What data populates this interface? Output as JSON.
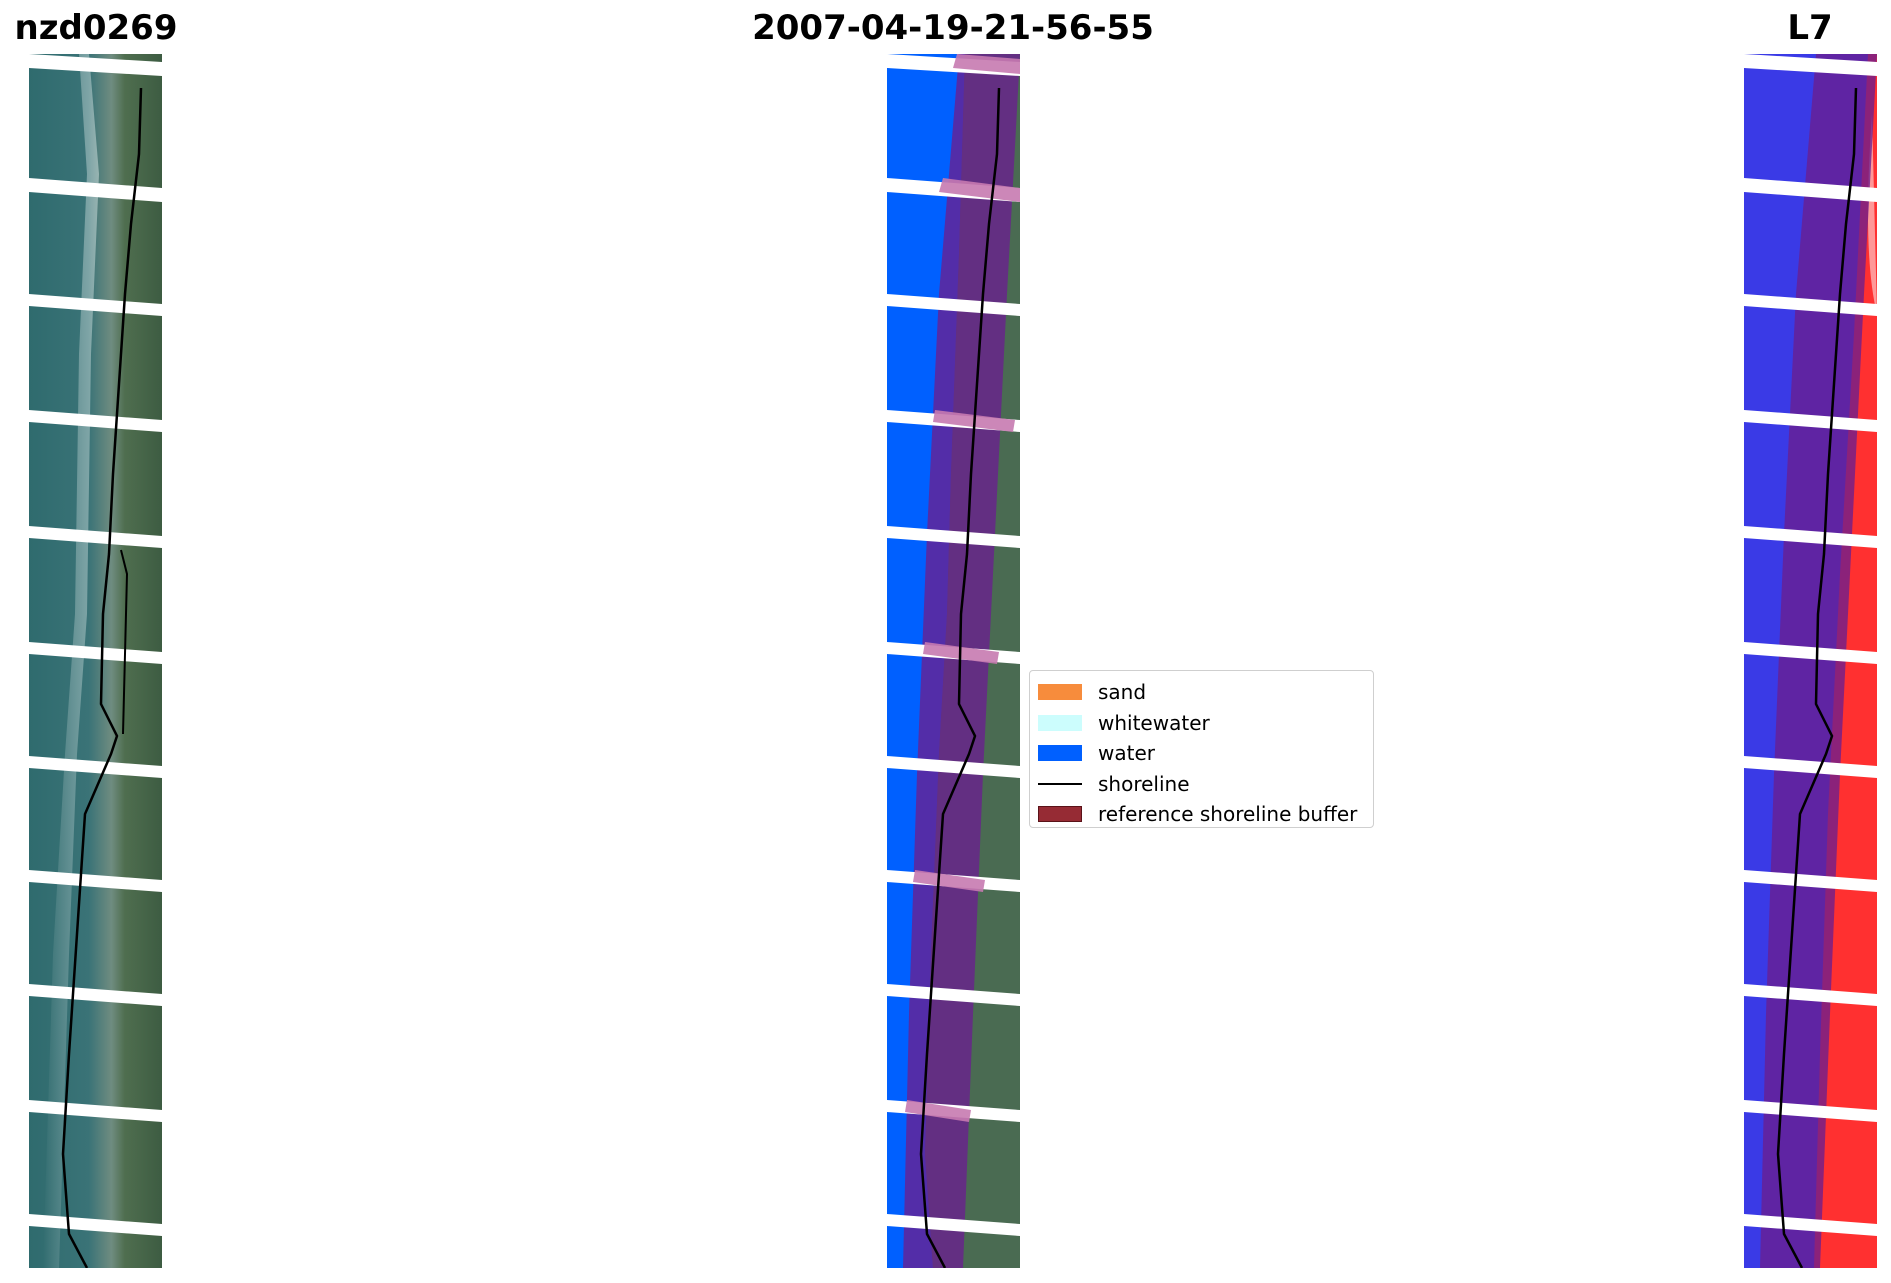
{
  "titles": {
    "left": "nzd0269",
    "center": "2007-04-19-21-56-55",
    "right": "L7"
  },
  "legend": {
    "items": [
      {
        "label": "sand",
        "color": "#f78c3c",
        "kind": "patch"
      },
      {
        "label": "whitewater",
        "color": "#ccfdfd",
        "kind": "patch"
      },
      {
        "label": "water",
        "color": "#0060ff",
        "kind": "patch"
      },
      {
        "label": "shoreline",
        "color": "#000000",
        "kind": "line"
      },
      {
        "label": "reference shoreline buffer",
        "color": "#962b34",
        "kind": "patch"
      }
    ]
  },
  "colors": {
    "rgb_sea": "#2f6b6e",
    "rgb_land": "#3d5c42",
    "water_class": "#0060ff",
    "buffer_overlay": "#6a1f8f",
    "index_water": "#3a3ae6",
    "index_land": "#ff3030",
    "shoreline": "#000000"
  }
}
